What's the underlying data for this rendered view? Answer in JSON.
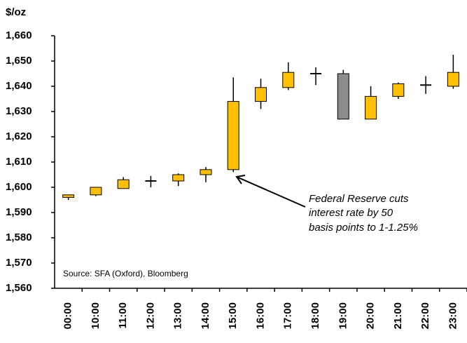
{
  "chart_data": {
    "type": "candlestick",
    "y_label": "$/oz",
    "source": "Source: SFA (Oxford), Bloomberg",
    "annotation": [
      "Federal Reserve cuts",
      "interest rate by 50",
      "basis points to 1-1.25%"
    ],
    "categories": [
      "00:00",
      "10:00",
      "11:00",
      "12:00",
      "13:00",
      "14:00",
      "15:00",
      "16:00",
      "17:00",
      "18:00",
      "19:00",
      "20:00",
      "21:00",
      "22:00",
      "23:00"
    ],
    "open": [
      1596,
      1597,
      1599.5,
      1602.5,
      1602.5,
      1605,
      1607,
      1634,
      1639.5,
      1645,
      1645,
      1627,
      1636,
      1640.5,
      1640
    ],
    "high": [
      1597,
      1600,
      1604,
      1604.5,
      1605.5,
      1608,
      1643.5,
      1643,
      1649.5,
      1647.5,
      1646.5,
      1640,
      1641.5,
      1644,
      1652.5
    ],
    "low": [
      1595,
      1596.5,
      1599.5,
      1600,
      1600.5,
      1602,
      1606,
      1631,
      1638.5,
      1640.5,
      1627,
      1627,
      1635,
      1637,
      1639
    ],
    "close": [
      1597,
      1600,
      1603,
      1602.5,
      1605,
      1607,
      1634,
      1639.5,
      1645.5,
      1645,
      1627,
      1636,
      1641,
      1640.5,
      1645.5
    ],
    "up_color": "#ffc000",
    "down_color": "#8c8c8c",
    "ylim": [
      1560,
      1660
    ],
    "yticks": [
      {
        "value": 1560,
        "label": "1,560"
      },
      {
        "value": 1570,
        "label": "1,570"
      },
      {
        "value": 1580,
        "label": "1,580"
      },
      {
        "value": 1590,
        "label": "1,590"
      },
      {
        "value": 1600,
        "label": "1,600"
      },
      {
        "value": 1610,
        "label": "1,610"
      },
      {
        "value": 1620,
        "label": "1,620"
      },
      {
        "value": 1630,
        "label": "1,630"
      },
      {
        "value": 1640,
        "label": "1,640"
      },
      {
        "value": 1650,
        "label": "1,650"
      },
      {
        "value": 1660,
        "label": "1,660"
      }
    ]
  }
}
